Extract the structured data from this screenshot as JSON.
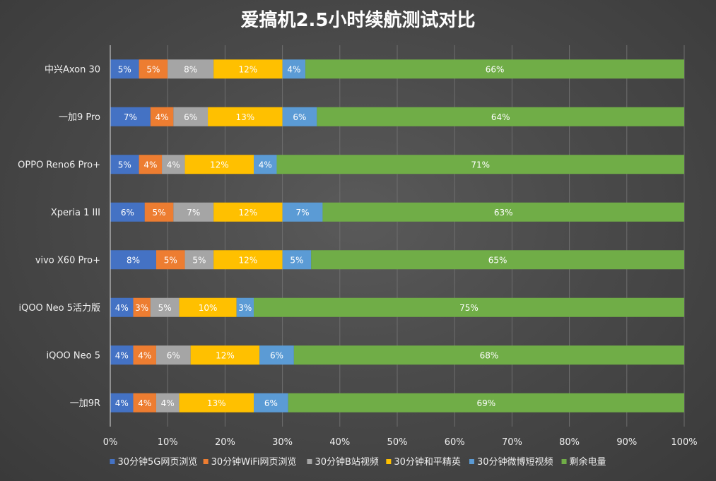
{
  "chart_data": {
    "type": "bar",
    "orientation": "horizontal",
    "stacked": true,
    "title": "爱搞机2.5小时续航测试对比",
    "categories": [
      "中兴Axon 30",
      "一加9 Pro",
      "OPPO Reno6 Pro+",
      "Xperia 1 III",
      "vivo X60 Pro+",
      "iQOO Neo 5活力版",
      "iQOO Neo 5",
      "一加9R"
    ],
    "xlim": [
      0,
      100
    ],
    "x_ticks": [
      "0%",
      "10%",
      "20%",
      "30%",
      "40%",
      "50%",
      "60%",
      "70%",
      "80%",
      "90%",
      "100%"
    ],
    "grid": true,
    "legend_position": "bottom",
    "series": [
      {
        "name": "30分钟5G网页浏览",
        "color": "#4472c4",
        "values": [
          5,
          7,
          5,
          6,
          8,
          4,
          4,
          4
        ]
      },
      {
        "name": "30分钟WiFi网页浏览",
        "color": "#ed7d31",
        "values": [
          5,
          4,
          4,
          5,
          5,
          3,
          4,
          4
        ]
      },
      {
        "name": "30分钟B站视频",
        "color": "#a5a5a5",
        "values": [
          8,
          6,
          4,
          7,
          5,
          5,
          6,
          4
        ]
      },
      {
        "name": "30分钟和平精英",
        "color": "#ffc000",
        "values": [
          12,
          13,
          12,
          12,
          12,
          10,
          12,
          13
        ]
      },
      {
        "name": "30分钟微博短视频",
        "color": "#5b9bd5",
        "values": [
          4,
          6,
          4,
          7,
          5,
          3,
          6,
          6
        ]
      },
      {
        "name": "剩余电量",
        "color": "#70ad47",
        "values": [
          66,
          64,
          71,
          63,
          65,
          75,
          68,
          69
        ]
      }
    ]
  }
}
